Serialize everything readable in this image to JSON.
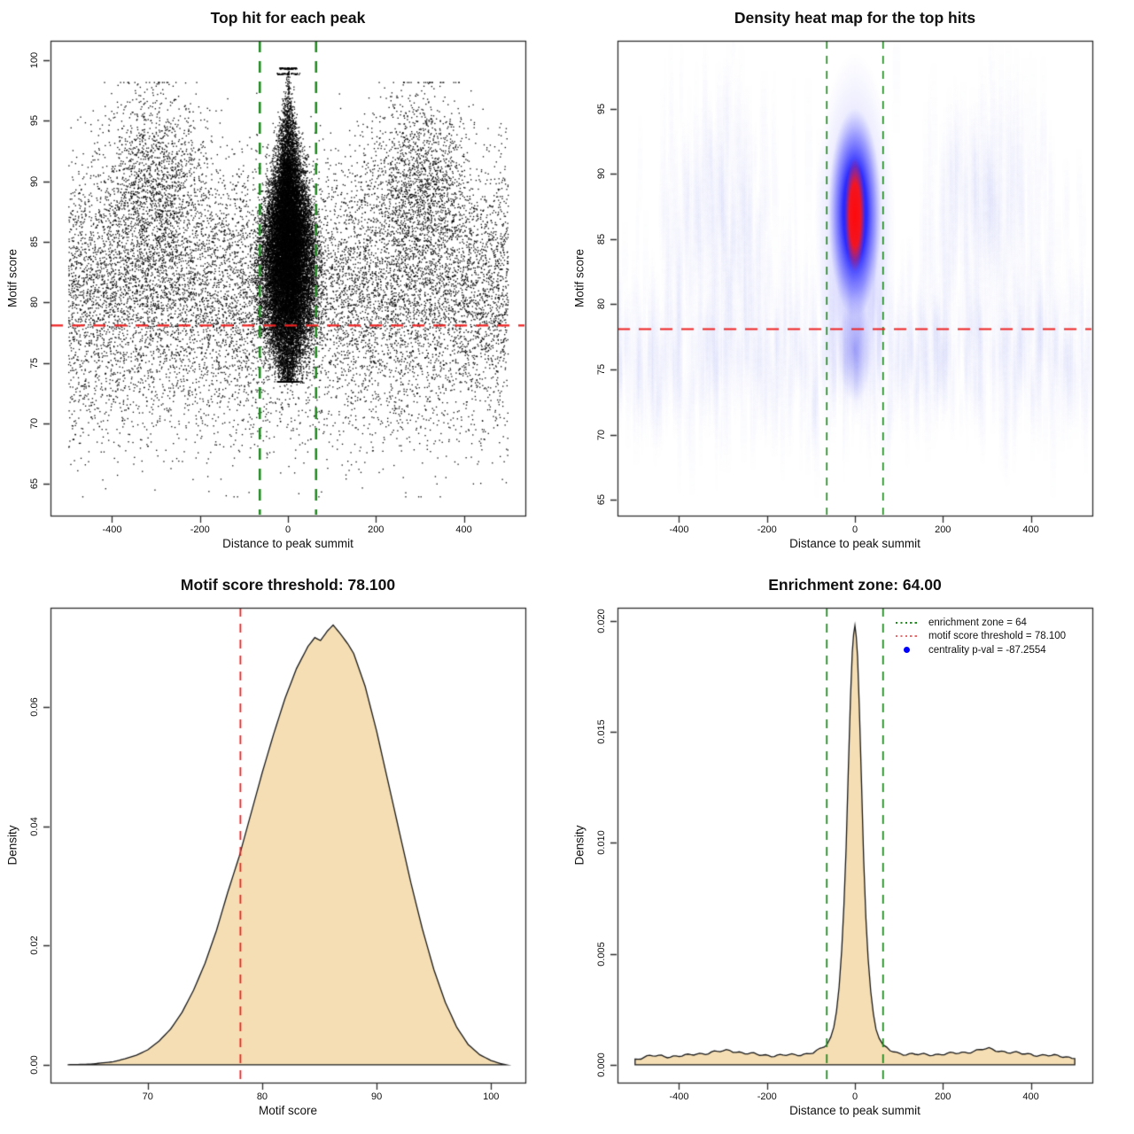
{
  "colors": {
    "threshold_red": "#ee2222",
    "zone_green": "#228B22",
    "density_fill": "#f5deb3",
    "density_stroke": "#1a1a1a",
    "point_black": "#000000",
    "heat_blue": "#1515ff",
    "heat_red": "#ff1010",
    "legend_green": "#228B22",
    "legend_red": "#e86a6a",
    "legend_blue": "#0000ff"
  },
  "chart_data": [
    {
      "type": "scatter",
      "title": "Top hit for each peak",
      "xlabel": "Distance to peak summit",
      "ylabel": "Motif score",
      "xlim": [
        -540,
        540
      ],
      "ylim": [
        62.4,
        101.6
      ],
      "xticks": [
        -400,
        -200,
        0,
        200,
        400
      ],
      "yticks": [
        65,
        70,
        75,
        80,
        85,
        90,
        95,
        100
      ],
      "threshold_line": {
        "y": 78.1,
        "color": "#ee2222",
        "style": "dashed"
      },
      "zone_lines": {
        "x": [
          -64,
          64
        ],
        "color": "#228B22",
        "style": "dashed"
      },
      "point_color": "#000000",
      "model": {
        "central_cluster": {
          "n": 22000,
          "x_mean": 0,
          "y_mean": 84.0,
          "y_sd": 4.9,
          "y_range": [
            73.5,
            99.4
          ],
          "x_sigma_max": 30,
          "cone_top": 99.8,
          "cone_slope": 2.0,
          "low_taper_below": 78,
          "x_clip": 78
        },
        "background": {
          "n": 11000,
          "x_range": [
            -500,
            500
          ],
          "y_mean": 81.0,
          "y_sd": 5.2,
          "y_range": [
            64,
            99.2
          ],
          "thin_above": 95.5
        },
        "side_bands": {
          "n": 3000,
          "x_centers": [
            -305,
            300
          ],
          "x_sd": 55,
          "y_mean": 90,
          "y_sd": 3.8,
          "y_range": [
            78,
            98.2
          ]
        },
        "low_tail": {
          "n": 450,
          "x_range": [
            -500,
            500
          ],
          "y_mean": 71,
          "y_sd": 2.6,
          "y_range": [
            64,
            76
          ]
        },
        "score_cap_rows": [
          {
            "y": 99.35,
            "x_halfspan": 20,
            "n": 80
          },
          {
            "y": 98.9,
            "x_halfspan": 26,
            "n": 60
          }
        ]
      }
    },
    {
      "type": "heatmap",
      "title": "Density heat map for the top hits",
      "xlabel": "Distance to peak summit",
      "ylabel": "Motif score",
      "xlim": [
        -540,
        540
      ],
      "ylim": [
        63.8,
        100.2
      ],
      "xticks": [
        -400,
        -200,
        0,
        200,
        400
      ],
      "yticks": [
        65,
        70,
        75,
        80,
        85,
        90,
        95
      ],
      "threshold_line": {
        "y": 78.1,
        "color": "#ee2222",
        "style": "dashed"
      },
      "zone_lines": {
        "x": [
          -64,
          64
        ],
        "color": "#228B22",
        "style": "dashed"
      },
      "palette": [
        "#ffffff",
        "#1515ff",
        "#ff1010"
      ],
      "hotspot": {
        "x_center": 0,
        "halo_score_span": [
          71.5,
          99.3
        ],
        "blue_score_span": [
          79,
          95
        ],
        "tail_score_span": [
          72.5,
          80.5
        ],
        "red_core_score_span": [
          82.5,
          91.2
        ]
      },
      "background_texture": {
        "haze_score_center": 76,
        "haze_score_band": [
          67,
          95
        ],
        "column_centers": [
          -300,
          300
        ],
        "column_score_center": 87
      }
    },
    {
      "type": "area",
      "title": "Motif score threshold: 78.100",
      "xlabel": "Motif score",
      "ylabel": "Density",
      "xlim": [
        61.5,
        103
      ],
      "ylim": [
        -0.003,
        0.0767
      ],
      "xticks": [
        70,
        80,
        90,
        100
      ],
      "yticks": [
        0,
        0.02,
        0.04,
        0.06
      ],
      "ytick_labels": [
        "0.00",
        "0.02",
        "0.04",
        "0.06"
      ],
      "threshold_line": {
        "x": 78.1,
        "color": "#ee2222",
        "style": "dashed"
      },
      "fill": "#f5deb3",
      "curve": [
        [
          63,
          0
        ],
        [
          65,
          0.0001
        ],
        [
          67,
          0.0005
        ],
        [
          68,
          0.001
        ],
        [
          69,
          0.0016
        ],
        [
          70,
          0.0025
        ],
        [
          71,
          0.004
        ],
        [
          72,
          0.006
        ],
        [
          73,
          0.0088
        ],
        [
          74,
          0.0125
        ],
        [
          75,
          0.017
        ],
        [
          76,
          0.0225
        ],
        [
          77,
          0.029
        ],
        [
          78,
          0.035
        ],
        [
          79,
          0.042
        ],
        [
          80,
          0.049
        ],
        [
          81,
          0.0555
        ],
        [
          82,
          0.0615
        ],
        [
          83,
          0.0665
        ],
        [
          84,
          0.0702
        ],
        [
          84.6,
          0.0717
        ],
        [
          85.1,
          0.0712
        ],
        [
          85.7,
          0.0728
        ],
        [
          86.2,
          0.0738
        ],
        [
          86.8,
          0.0724
        ],
        [
          87.5,
          0.0706
        ],
        [
          88,
          0.069
        ],
        [
          89,
          0.0635
        ],
        [
          90,
          0.056
        ],
        [
          91,
          0.0475
        ],
        [
          92,
          0.039
        ],
        [
          93,
          0.0305
        ],
        [
          94,
          0.0228
        ],
        [
          95,
          0.016
        ],
        [
          96,
          0.0105
        ],
        [
          97,
          0.0063
        ],
        [
          98,
          0.0034
        ],
        [
          99,
          0.0017
        ],
        [
          100,
          0.0007
        ],
        [
          100.8,
          0.0002
        ],
        [
          101.3,
          0
        ]
      ]
    },
    {
      "type": "area",
      "title": "Enrichment zone: 64.00",
      "xlabel": "Distance to peak summit",
      "ylabel": "Density",
      "xlim": [
        -540,
        540
      ],
      "ylim": [
        -0.0008,
        0.0206
      ],
      "xticks": [
        -400,
        -200,
        0,
        200,
        400
      ],
      "yticks": [
        0,
        0.005,
        0.01,
        0.015,
        0.02
      ],
      "ytick_labels": [
        "0.000",
        "0.005",
        "0.010",
        "0.015",
        "0.020"
      ],
      "zone_lines": {
        "x": [
          -64,
          64
        ],
        "color": "#228B22",
        "style": "dashed"
      },
      "fill": "#f5deb3",
      "ripple": true,
      "curve": [
        [
          -500,
          0.00025
        ],
        [
          -480,
          0.00035
        ],
        [
          -460,
          0.0004
        ],
        [
          -440,
          0.0004
        ],
        [
          -420,
          0.00038
        ],
        [
          -400,
          0.0004
        ],
        [
          -380,
          0.00042
        ],
        [
          -360,
          0.0005
        ],
        [
          -340,
          0.00052
        ],
        [
          -320,
          0.00058
        ],
        [
          -300,
          0.00062
        ],
        [
          -285,
          0.00066
        ],
        [
          -270,
          0.0006
        ],
        [
          -250,
          0.00052
        ],
        [
          -230,
          0.00048
        ],
        [
          -210,
          0.00045
        ],
        [
          -190,
          0.00042
        ],
        [
          -170,
          0.00042
        ],
        [
          -150,
          0.00044
        ],
        [
          -130,
          0.00046
        ],
        [
          -110,
          0.0005
        ],
        [
          -95,
          0.00055
        ],
        [
          -80,
          0.00068
        ],
        [
          -70,
          0.0008
        ],
        [
          -64,
          0.0009
        ],
        [
          -55,
          0.00125
        ],
        [
          -48,
          0.0017
        ],
        [
          -42,
          0.0024
        ],
        [
          -36,
          0.0035
        ],
        [
          -30,
          0.0052
        ],
        [
          -25,
          0.0072
        ],
        [
          -20,
          0.0098
        ],
        [
          -15,
          0.0133
        ],
        [
          -10,
          0.0166
        ],
        [
          -6,
          0.0186
        ],
        [
          -3,
          0.0194
        ],
        [
          0,
          0.0198
        ],
        [
          3,
          0.0193
        ],
        [
          6,
          0.0184
        ],
        [
          10,
          0.0161
        ],
        [
          15,
          0.0127
        ],
        [
          20,
          0.0092
        ],
        [
          25,
          0.0066
        ],
        [
          30,
          0.0048
        ],
        [
          36,
          0.0033
        ],
        [
          42,
          0.0023
        ],
        [
          48,
          0.0016
        ],
        [
          55,
          0.0012
        ],
        [
          64,
          0.0009
        ],
        [
          72,
          0.00075
        ],
        [
          80,
          0.00065
        ],
        [
          95,
          0.00055
        ],
        [
          110,
          0.0005
        ],
        [
          130,
          0.00048
        ],
        [
          150,
          0.00046
        ],
        [
          170,
          0.00046
        ],
        [
          190,
          0.00048
        ],
        [
          210,
          0.0005
        ],
        [
          230,
          0.00052
        ],
        [
          250,
          0.00056
        ],
        [
          270,
          0.00062
        ],
        [
          290,
          0.0007
        ],
        [
          305,
          0.00072
        ],
        [
          320,
          0.00066
        ],
        [
          340,
          0.0006
        ],
        [
          360,
          0.00055
        ],
        [
          380,
          0.0005
        ],
        [
          400,
          0.00048
        ],
        [
          420,
          0.00044
        ],
        [
          440,
          0.00042
        ],
        [
          460,
          0.0004
        ],
        [
          480,
          0.00038
        ],
        [
          500,
          0.00028
        ]
      ],
      "legend": {
        "items": [
          {
            "symbol": "dotted-line",
            "color": "#228B22",
            "label": "enrichment zone = 64"
          },
          {
            "symbol": "dotted-line",
            "color": "#e86a6a",
            "label": "motif score threshold = 78.100"
          },
          {
            "symbol": "dot",
            "color": "#0000ff",
            "label": "centrality p-val = -87.2554"
          }
        ]
      }
    }
  ]
}
